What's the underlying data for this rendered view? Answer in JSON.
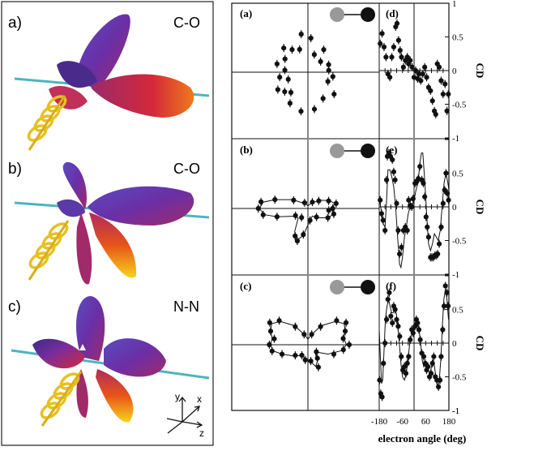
{
  "left_panels": [
    {
      "letter": "a)",
      "molecule": "C-O"
    },
    {
      "letter": "b)",
      "molecule": "C-O"
    },
    {
      "letter": "c)",
      "molecule": "N-N"
    }
  ],
  "axes_triad": {
    "y": "y",
    "x": "x",
    "z": "z"
  },
  "colors": {
    "lobe_purple": "#5a2fa6",
    "lobe_red": "#d4283a",
    "lobe_orange": "#f07a1a",
    "lobe_yellow": "#f7d21a",
    "molecular_axis": "#4fb3c0",
    "helix": "#e8c020",
    "atom_grey": "#999999",
    "atom_black": "#111111",
    "ink": "#111111"
  },
  "chart_data": [
    {
      "type": "scatter",
      "panel": "(a)",
      "projection": "polar",
      "points": [
        [
          -40,
          0.62
        ],
        [
          -10,
          0.46
        ],
        [
          20,
          0.4
        ],
        [
          55,
          0.5
        ],
        [
          85,
          0.62
        ],
        [
          100,
          0.7
        ],
        [
          125,
          0.5
        ],
        [
          150,
          0.48
        ],
        [
          175,
          0.42
        ],
        [
          -160,
          0.38
        ],
        [
          -140,
          0.55
        ],
        [
          -120,
          0.65
        ],
        [
          -100,
          0.72
        ],
        [
          -80,
          0.68
        ],
        [
          -60,
          0.55
        ],
        [
          -25,
          0.4
        ],
        [
          5,
          0.38
        ],
        [
          40,
          0.3
        ],
        [
          70,
          0.34
        ],
        [
          110,
          0.44
        ],
        [
          135,
          0.62
        ],
        [
          165,
          0.58
        ],
        [
          -170,
          0.52
        ],
        [
          -150,
          0.63
        ],
        [
          -130,
          0.48
        ]
      ]
    },
    {
      "type": "scatter",
      "panel": "(b)",
      "projection": "polar",
      "points": [
        [
          0,
          0.45
        ],
        [
          10,
          0.52
        ],
        [
          20,
          0.4
        ],
        [
          35,
          0.24
        ],
        [
          55,
          0.14
        ],
        [
          120,
          0.12
        ],
        [
          150,
          0.3
        ],
        [
          165,
          0.62
        ],
        [
          172,
          0.86
        ],
        [
          180,
          0.9
        ],
        [
          -172,
          0.82
        ],
        [
          -165,
          0.58
        ],
        [
          -150,
          0.26
        ],
        [
          -125,
          0.2
        ],
        [
          -115,
          0.55
        ],
        [
          -108,
          0.62
        ],
        [
          -100,
          0.48
        ],
        [
          -80,
          0.22
        ],
        [
          -45,
          0.22
        ],
        [
          -25,
          0.4
        ],
        [
          -12,
          0.48
        ],
        [
          -5,
          0.38
        ]
      ],
      "curve_points": [
        [
          0,
          0.42
        ],
        [
          10,
          0.5
        ],
        [
          20,
          0.42
        ],
        [
          35,
          0.26
        ],
        [
          55,
          0.12
        ],
        [
          90,
          0.05
        ],
        [
          120,
          0.1
        ],
        [
          150,
          0.32
        ],
        [
          165,
          0.62
        ],
        [
          172,
          0.82
        ],
        [
          180,
          0.88
        ],
        [
          -172,
          0.8
        ],
        [
          -165,
          0.58
        ],
        [
          -150,
          0.28
        ],
        [
          -135,
          0.25
        ],
        [
          -120,
          0.48
        ],
        [
          -110,
          0.62
        ],
        [
          -100,
          0.5
        ],
        [
          -80,
          0.22
        ],
        [
          -60,
          0.16
        ],
        [
          -45,
          0.24
        ],
        [
          -25,
          0.4
        ],
        [
          -12,
          0.48
        ]
      ]
    },
    {
      "type": "scatter",
      "panel": "(c)",
      "projection": "polar",
      "points": [
        [
          0,
          0.75
        ],
        [
          10,
          0.65
        ],
        [
          20,
          0.72
        ],
        [
          30,
          0.8
        ],
        [
          40,
          0.68
        ],
        [
          55,
          0.4
        ],
        [
          70,
          0.2
        ],
        [
          110,
          0.2
        ],
        [
          125,
          0.4
        ],
        [
          140,
          0.68
        ],
        [
          150,
          0.8
        ],
        [
          160,
          0.72
        ],
        [
          170,
          0.62
        ],
        [
          180,
          0.7
        ],
        [
          -170,
          0.66
        ],
        [
          -160,
          0.5
        ],
        [
          -140,
          0.3
        ],
        [
          -120,
          0.22
        ],
        [
          -100,
          0.28
        ],
        [
          -80,
          0.3
        ],
        [
          -65,
          0.45
        ],
        [
          -55,
          0.3
        ],
        [
          -40,
          0.2
        ],
        [
          -20,
          0.5
        ],
        [
          -8,
          0.65
        ]
      ],
      "curve_points": [
        [
          0,
          0.7
        ],
        [
          10,
          0.66
        ],
        [
          20,
          0.72
        ],
        [
          30,
          0.76
        ],
        [
          40,
          0.66
        ],
        [
          55,
          0.42
        ],
        [
          70,
          0.2
        ],
        [
          90,
          0.1
        ],
        [
          110,
          0.2
        ],
        [
          125,
          0.42
        ],
        [
          140,
          0.66
        ],
        [
          150,
          0.76
        ],
        [
          160,
          0.72
        ],
        [
          170,
          0.66
        ],
        [
          180,
          0.68
        ],
        [
          -170,
          0.64
        ],
        [
          -160,
          0.5
        ],
        [
          -140,
          0.32
        ],
        [
          -120,
          0.22
        ],
        [
          -100,
          0.26
        ],
        [
          -80,
          0.32
        ],
        [
          -70,
          0.42
        ],
        [
          -60,
          0.34
        ],
        [
          -45,
          0.18
        ],
        [
          -25,
          0.4
        ],
        [
          -10,
          0.62
        ]
      ]
    },
    {
      "type": "scatter",
      "panel": "(d)",
      "xlim": [
        -180,
        180
      ],
      "ylim": [
        -1,
        1
      ],
      "points": [
        [
          -175,
          0.4
        ],
        [
          -165,
          0.55
        ],
        [
          -155,
          0.35
        ],
        [
          -145,
          0.2
        ],
        [
          -135,
          -0.05
        ],
        [
          -125,
          -0.1
        ],
        [
          -115,
          0.2
        ],
        [
          -105,
          0.35
        ],
        [
          -95,
          0.65
        ],
        [
          -88,
          0.7
        ],
        [
          -80,
          0.45
        ],
        [
          -72,
          0.3
        ],
        [
          -65,
          0.2
        ],
        [
          -55,
          0.05
        ],
        [
          -45,
          0.15
        ],
        [
          -35,
          0.2
        ],
        [
          -28,
          0.1
        ],
        [
          -20,
          0.15
        ],
        [
          -10,
          0.05
        ],
        [
          0,
          -0.1
        ],
        [
          8,
          0.0
        ],
        [
          18,
          -0.12
        ],
        [
          25,
          -0.05
        ],
        [
          35,
          -0.15
        ],
        [
          45,
          -0.05
        ],
        [
          55,
          0.05
        ],
        [
          65,
          -0.1
        ],
        [
          75,
          -0.25
        ],
        [
          85,
          -0.3
        ],
        [
          95,
          -0.45
        ],
        [
          105,
          -0.6
        ],
        [
          112,
          -0.65
        ],
        [
          120,
          0.1
        ],
        [
          130,
          0.05
        ],
        [
          140,
          -0.15
        ],
        [
          150,
          -0.35
        ],
        [
          160,
          -0.2
        ],
        [
          170,
          -0.6
        ],
        [
          177,
          -0.35
        ]
      ]
    },
    {
      "type": "scatter",
      "panel": "(e)",
      "xlim": [
        -180,
        180
      ],
      "ylim": [
        -1,
        1
      ],
      "points": [
        [
          -175,
          0.1
        ],
        [
          -168,
          -0.1
        ],
        [
          -160,
          -0.2
        ],
        [
          -150,
          -0.35
        ],
        [
          -142,
          0.4
        ],
        [
          -138,
          0.75
        ],
        [
          -130,
          0.8
        ],
        [
          -122,
          0.75
        ],
        [
          -112,
          0.7
        ],
        [
          -105,
          0.52
        ],
        [
          -98,
          0.4
        ],
        [
          -90,
          0.05
        ],
        [
          -82,
          -0.35
        ],
        [
          -75,
          -0.7
        ],
        [
          -65,
          -0.6
        ],
        [
          -55,
          -0.35
        ],
        [
          -45,
          -0.3
        ],
        [
          -35,
          -0.35
        ],
        [
          -28,
          0.1
        ],
        [
          -20,
          0.02
        ],
        [
          -12,
          0.0
        ],
        [
          -5,
          0.12
        ],
        [
          5,
          0.35
        ],
        [
          15,
          0.38
        ],
        [
          22,
          0.42
        ],
        [
          30,
          0.6
        ],
        [
          40,
          0.4
        ],
        [
          48,
          0.35
        ],
        [
          55,
          0.15
        ],
        [
          62,
          -0.15
        ],
        [
          68,
          -0.3
        ],
        [
          75,
          -0.45
        ],
        [
          85,
          -0.75
        ],
        [
          92,
          -0.75
        ],
        [
          100,
          -0.75
        ],
        [
          108,
          -0.72
        ],
        [
          116,
          -0.72
        ],
        [
          122,
          -0.7
        ],
        [
          130,
          -0.55
        ],
        [
          140,
          -0.3
        ],
        [
          150,
          0.05
        ],
        [
          158,
          0.25
        ],
        [
          165,
          0.5
        ],
        [
          172,
          0.2
        ],
        [
          178,
          0.1
        ]
      ],
      "curve_points": [
        [
          -180,
          0.15
        ],
        [
          -170,
          -0.05
        ],
        [
          -160,
          -0.25
        ],
        [
          -150,
          -0.3
        ],
        [
          -142,
          0.1
        ],
        [
          -135,
          0.55
        ],
        [
          -125,
          0.55
        ],
        [
          -115,
          0.45
        ],
        [
          -105,
          0.3
        ],
        [
          -95,
          0.0
        ],
        [
          -85,
          -0.45
        ],
        [
          -75,
          -0.85
        ],
        [
          -68,
          -0.9
        ],
        [
          -60,
          -0.75
        ],
        [
          -50,
          -0.45
        ],
        [
          -40,
          -0.3
        ],
        [
          -30,
          -0.1
        ],
        [
          -20,
          0.0
        ],
        [
          -10,
          0.0
        ],
        [
          0,
          0.1
        ],
        [
          10,
          0.25
        ],
        [
          20,
          0.35
        ],
        [
          30,
          0.65
        ],
        [
          38,
          0.8
        ],
        [
          45,
          0.8
        ],
        [
          55,
          0.4
        ],
        [
          65,
          -0.1
        ],
        [
          75,
          -0.55
        ],
        [
          85,
          -0.65
        ],
        [
          95,
          -0.55
        ],
        [
          105,
          -0.4
        ],
        [
          115,
          -0.45
        ],
        [
          125,
          -0.5
        ],
        [
          135,
          -0.35
        ],
        [
          145,
          0.0
        ],
        [
          155,
          0.35
        ],
        [
          165,
          0.5
        ],
        [
          175,
          0.35
        ],
        [
          180,
          0.25
        ]
      ]
    },
    {
      "type": "scatter",
      "panel": "(f)",
      "xlim": [
        -180,
        180
      ],
      "ylim": [
        -1,
        1
      ],
      "points": [
        [
          -178,
          -0.55
        ],
        [
          -172,
          -0.75
        ],
        [
          -165,
          -0.8
        ],
        [
          -158,
          -0.3
        ],
        [
          -150,
          0.0
        ],
        [
          -142,
          0.35
        ],
        [
          -135,
          0.65
        ],
        [
          -128,
          0.75
        ],
        [
          -120,
          0.4
        ],
        [
          -112,
          0.3
        ],
        [
          -105,
          0.55
        ],
        [
          -98,
          0.5
        ],
        [
          -90,
          0.35
        ],
        [
          -82,
          0.25
        ],
        [
          -74,
          0.1
        ],
        [
          -66,
          -0.2
        ],
        [
          -58,
          -0.4
        ],
        [
          -50,
          -0.35
        ],
        [
          -42,
          -0.45
        ],
        [
          -35,
          -0.3
        ],
        [
          -28,
          -0.2
        ],
        [
          -20,
          0.05
        ],
        [
          -12,
          0.2
        ],
        [
          -5,
          0.15
        ],
        [
          5,
          0.25
        ],
        [
          12,
          0.35
        ],
        [
          18,
          0.3
        ],
        [
          25,
          0.2
        ],
        [
          32,
          0.05
        ],
        [
          40,
          -0.15
        ],
        [
          50,
          -0.2
        ],
        [
          58,
          -0.3
        ],
        [
          65,
          -0.4
        ],
        [
          72,
          -0.35
        ],
        [
          80,
          -0.5
        ],
        [
          88,
          -0.45
        ],
        [
          95,
          -0.3
        ],
        [
          102,
          -0.2
        ],
        [
          110,
          -0.5
        ],
        [
          118,
          -0.55
        ],
        [
          126,
          -0.65
        ],
        [
          134,
          -0.55
        ],
        [
          140,
          -0.2
        ],
        [
          148,
          0.2
        ],
        [
          155,
          0.55
        ],
        [
          162,
          0.85
        ],
        [
          170,
          0.75
        ],
        [
          176,
          0.55
        ]
      ],
      "curve_points": [
        [
          -180,
          0.2
        ],
        [
          -174,
          -0.2
        ],
        [
          -168,
          -0.6
        ],
        [
          -162,
          -0.55
        ],
        [
          -155,
          -0.1
        ],
        [
          -148,
          0.35
        ],
        [
          -140,
          0.55
        ],
        [
          -132,
          0.65
        ],
        [
          -124,
          0.55
        ],
        [
          -116,
          0.45
        ],
        [
          -108,
          0.45
        ],
        [
          -100,
          0.5
        ],
        [
          -92,
          0.45
        ],
        [
          -84,
          0.25
        ],
        [
          -76,
          0.0
        ],
        [
          -68,
          -0.3
        ],
        [
          -60,
          -0.5
        ],
        [
          -50,
          -0.55
        ],
        [
          -40,
          -0.45
        ],
        [
          -30,
          -0.2
        ],
        [
          -20,
          0.05
        ],
        [
          -10,
          0.15
        ],
        [
          0,
          0.25
        ],
        [
          10,
          0.3
        ],
        [
          18,
          0.3
        ],
        [
          26,
          0.2
        ],
        [
          34,
          0.0
        ],
        [
          42,
          -0.25
        ],
        [
          50,
          -0.35
        ],
        [
          58,
          -0.3
        ],
        [
          66,
          -0.3
        ],
        [
          74,
          -0.4
        ],
        [
          82,
          -0.45
        ],
        [
          90,
          -0.35
        ],
        [
          98,
          -0.25
        ],
        [
          106,
          -0.35
        ],
        [
          114,
          -0.55
        ],
        [
          122,
          -0.65
        ],
        [
          130,
          -0.55
        ],
        [
          138,
          -0.25
        ],
        [
          146,
          0.25
        ],
        [
          154,
          0.65
        ],
        [
          162,
          0.8
        ],
        [
          170,
          0.65
        ],
        [
          178,
          0.35
        ]
      ]
    }
  ],
  "axes": {
    "y_ticks": [
      "1",
      "0.5",
      "0",
      "-0.5",
      "-1"
    ],
    "y_label": "CD",
    "x_ticks": [
      "-180",
      "-60",
      "60",
      "180"
    ],
    "x_label": "electron angle (deg)"
  }
}
